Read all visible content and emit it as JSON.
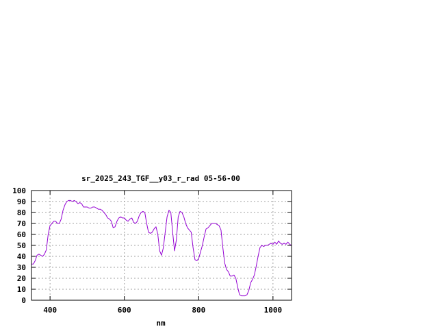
{
  "chart_data": {
    "type": "line",
    "title": "sr_2025_243_TGF__y03_r_rad 05-56-00",
    "xlabel": "nm",
    "ylabel": "",
    "xlim": [
      350,
      1050
    ],
    "ylim": [
      0,
      100
    ],
    "x_ticks": [
      400,
      600,
      800,
      1000
    ],
    "y_ticks": [
      0,
      10,
      20,
      30,
      40,
      50,
      60,
      70,
      80,
      90,
      100
    ],
    "grid": true,
    "legend": "none",
    "colors": {
      "series": "#9400d3",
      "frame": "#000000",
      "grid": "#a0a0a0"
    },
    "series": [
      {
        "x": [
          350,
          355,
          360,
          365,
          370,
          375,
          380,
          385,
          390,
          395,
          400,
          405,
          410,
          415,
          420,
          425,
          430,
          435,
          440,
          445,
          450,
          455,
          460,
          465,
          470,
          475,
          480,
          485,
          490,
          495,
          500,
          505,
          510,
          515,
          520,
          525,
          530,
          535,
          540,
          545,
          550,
          555,
          560,
          565,
          570,
          575,
          580,
          585,
          590,
          595,
          600,
          605,
          610,
          615,
          620,
          625,
          630,
          635,
          640,
          645,
          650,
          655,
          660,
          665,
          670,
          675,
          680,
          685,
          690,
          695,
          700,
          705,
          710,
          715,
          720,
          725,
          730,
          735,
          740,
          745,
          750,
          755,
          760,
          765,
          770,
          775,
          780,
          785,
          790,
          795,
          800,
          805,
          810,
          815,
          820,
          825,
          830,
          835,
          840,
          845,
          850,
          855,
          860,
          865,
          870,
          875,
          880,
          885,
          890,
          895,
          900,
          905,
          910,
          915,
          920,
          925,
          930,
          935,
          940,
          945,
          950,
          955,
          960,
          965,
          970,
          975,
          980,
          985,
          990,
          995,
          1000,
          1005,
          1010,
          1015,
          1020,
          1025,
          1030,
          1035,
          1040,
          1045,
          1050
        ],
        "values": [
          33,
          33,
          36,
          41,
          42,
          41,
          40,
          42,
          46,
          60,
          68,
          70,
          72,
          72,
          70,
          70,
          74,
          82,
          87,
          90,
          91,
          91,
          90,
          91,
          90,
          88,
          89,
          88,
          85,
          85,
          85,
          84,
          84,
          85,
          85,
          84,
          83,
          83,
          82,
          80,
          78,
          75,
          74,
          72,
          66,
          67,
          72,
          75,
          76,
          75,
          75,
          73,
          72,
          74,
          75,
          71,
          70,
          72,
          77,
          80,
          81,
          80,
          70,
          62,
          61,
          62,
          65,
          67,
          60,
          45,
          41,
          48,
          62,
          76,
          82,
          80,
          62,
          45,
          55,
          76,
          81,
          80,
          76,
          70,
          66,
          64,
          62,
          48,
          37,
          36,
          38,
          44,
          50,
          58,
          65,
          66,
          68,
          70,
          70,
          70,
          69,
          68,
          64,
          48,
          34,
          28,
          26,
          22,
          22,
          23,
          20,
          12,
          5,
          4,
          4,
          4,
          5,
          9,
          16,
          19,
          23,
          31,
          40,
          48,
          50,
          49,
          50,
          50,
          51,
          52,
          51,
          53,
          51,
          54,
          52,
          51,
          52,
          51,
          53,
          51,
          50
        ]
      }
    ]
  }
}
